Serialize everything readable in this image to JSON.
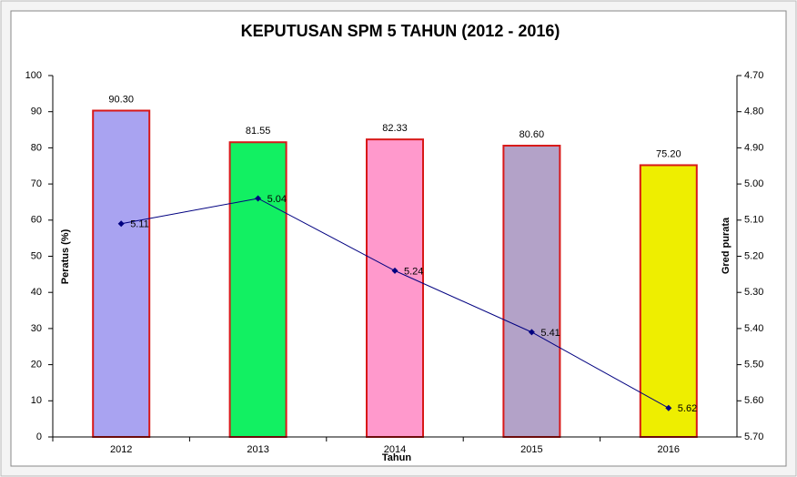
{
  "chart_data": {
    "type": "bar-line",
    "title": "KEPUTUSAN SPM 5 TAHUN (2012 - 2016)",
    "x_label": "Tahun",
    "y_label": "Peratus (%)",
    "y2_label": "Gred purata",
    "categories": [
      "2012",
      "2013",
      "2014",
      "2015",
      "2016"
    ],
    "series": [
      {
        "name": "Peratus",
        "type": "bar",
        "colors": [
          "#a9a3f1",
          "#12f062",
          "#ff99cc",
          "#b3a2c8",
          "#eeee00"
        ],
        "edgecolor": "#d81818",
        "values": [
          90.3,
          81.55,
          82.33,
          80.6,
          75.2
        ],
        "value_labels": [
          "90.30",
          "81.55",
          "82.33",
          "80.60",
          "75.20"
        ]
      },
      {
        "name": "Gred purata",
        "type": "line",
        "axis": "y2",
        "color": "#000080",
        "values": [
          5.11,
          5.04,
          5.24,
          5.41,
          5.62
        ]
      }
    ],
    "ylim": [
      0,
      100
    ],
    "yticks": [
      0,
      10,
      20,
      30,
      40,
      50,
      60,
      70,
      80,
      90,
      100
    ],
    "y2lim": [
      5.7,
      4.7
    ],
    "y2ticks": [
      {
        "value": 4.7,
        "label": "4.70"
      },
      {
        "value": 4.8,
        "label": "4.80"
      },
      {
        "value": 4.9,
        "label": "4.90"
      },
      {
        "value": 5.0,
        "label": "5.00"
      },
      {
        "value": 5.1,
        "label": "5.10"
      },
      {
        "value": 5.2,
        "label": "5.20"
      },
      {
        "value": 5.3,
        "label": "5.30"
      },
      {
        "value": 5.4,
        "label": "5.40"
      },
      {
        "value": 5.5,
        "label": "5.50"
      },
      {
        "value": 5.6,
        "label": "5.60"
      },
      {
        "value": 5.7,
        "label": "5.70"
      }
    ]
  }
}
